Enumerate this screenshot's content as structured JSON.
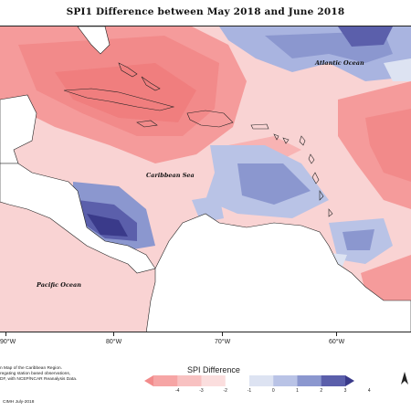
{
  "title": "SPI1 Difference between May 2018 and June 2018",
  "ocean_labels": {
    "atlantic": "Atlantic Ocean",
    "caribbean": "Caribbean Sea",
    "pacific": "Pacific Ocean"
  },
  "longitude_labels": [
    "90°W",
    "80°W",
    "70°W",
    "60°W"
  ],
  "legend": {
    "title": "SPI Difference",
    "ticks": [
      "-4",
      "-3",
      "-2",
      "-1",
      "0",
      "1",
      "2",
      "3",
      "4"
    ],
    "colors": [
      "#f28b8b",
      "#f6a5a5",
      "#f8c1c1",
      "#fbdede",
      "#ffffff",
      "#dde3f2",
      "#b9c3e6",
      "#8b97cf",
      "#5b5fab",
      "#3a3a8a"
    ]
  },
  "caption_lines": [
    "n Map of the Caribbean Region.",
    "regating station based observations,",
    "DF, with NCEP/NCAR Reanalysis Data."
  ],
  "credit": "CIMH July-2018"
}
